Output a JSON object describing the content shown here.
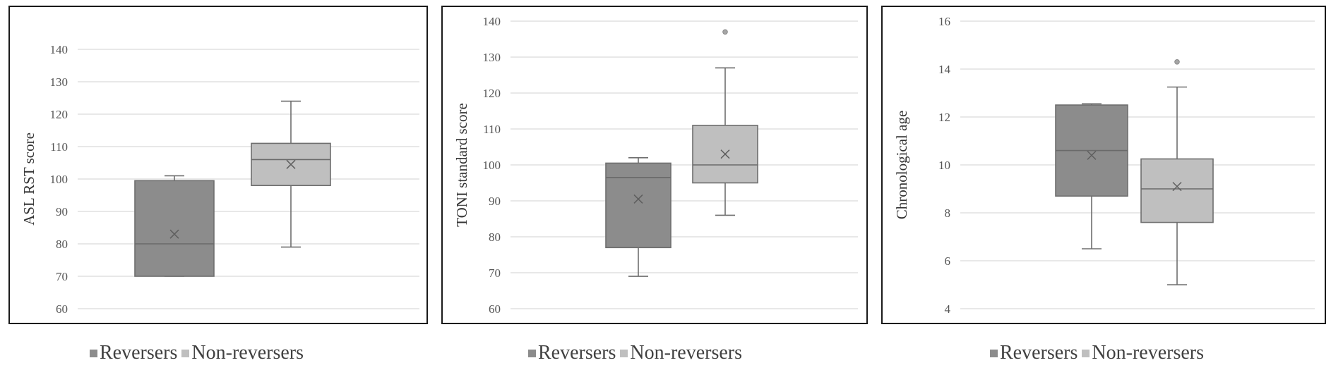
{
  "colors": {
    "reversers_fill": "#8c8c8c",
    "nonreversers_fill": "#bfbfbf",
    "box_stroke": "#6e6e6e",
    "grid": "#d9d9d9",
    "frame": "#1a1a1a"
  },
  "chart_data": [
    {
      "type": "box",
      "title": "",
      "xlabel": "",
      "ylabel": "ASL RST score",
      "ylim": [
        60,
        140
      ],
      "yticks": [
        "60",
        "70",
        "80",
        "90",
        "100",
        "110",
        "120",
        "130",
        "140"
      ],
      "grid": true,
      "legend_position": "bottom",
      "legend": [
        "Reversers",
        "Non-reversers"
      ],
      "series": [
        {
          "name": "Reversers",
          "min": 70,
          "q1": 70,
          "median": 80,
          "q3": 99.5,
          "max": 101,
          "mean": 83,
          "outliers": []
        },
        {
          "name": "Non-reversers",
          "min": 79,
          "q1": 98,
          "median": 106,
          "q3": 111,
          "max": 124,
          "mean": 104.5,
          "outliers": []
        }
      ]
    },
    {
      "type": "box",
      "title": "",
      "xlabel": "",
      "ylabel": "TONI standard score",
      "ylim": [
        60,
        140
      ],
      "yticks": [
        "60",
        "70",
        "80",
        "90",
        "100",
        "110",
        "120",
        "130",
        "140"
      ],
      "grid": true,
      "legend_position": "bottom",
      "legend": [
        "Reversers",
        "Non-reversers"
      ],
      "series": [
        {
          "name": "Reversers",
          "min": 69,
          "q1": 77,
          "median": 96.5,
          "q3": 100.5,
          "max": 102,
          "mean": 90.5,
          "outliers": []
        },
        {
          "name": "Non-reversers",
          "min": 86,
          "q1": 95,
          "median": 100,
          "q3": 111,
          "max": 127,
          "mean": 103,
          "outliers": [
            137
          ]
        }
      ]
    },
    {
      "type": "box",
      "title": "",
      "xlabel": "",
      "ylabel": "Chronological age",
      "ylim": [
        4,
        16
      ],
      "yticks": [
        "4",
        "6",
        "8",
        "10",
        "12",
        "14",
        "16"
      ],
      "grid": true,
      "legend_position": "bottom",
      "legend": [
        "Reversers",
        "Non-reversers"
      ],
      "series": [
        {
          "name": "Reversers",
          "min": 6.5,
          "q1": 8.7,
          "median": 10.6,
          "q3": 12.5,
          "max": 12.55,
          "mean": 10.4,
          "outliers": []
        },
        {
          "name": "Non-reversers",
          "min": 5,
          "q1": 7.6,
          "median": 9,
          "q3": 10.25,
          "max": 13.25,
          "mean": 9.1,
          "outliers": [
            14.3
          ]
        }
      ]
    }
  ]
}
